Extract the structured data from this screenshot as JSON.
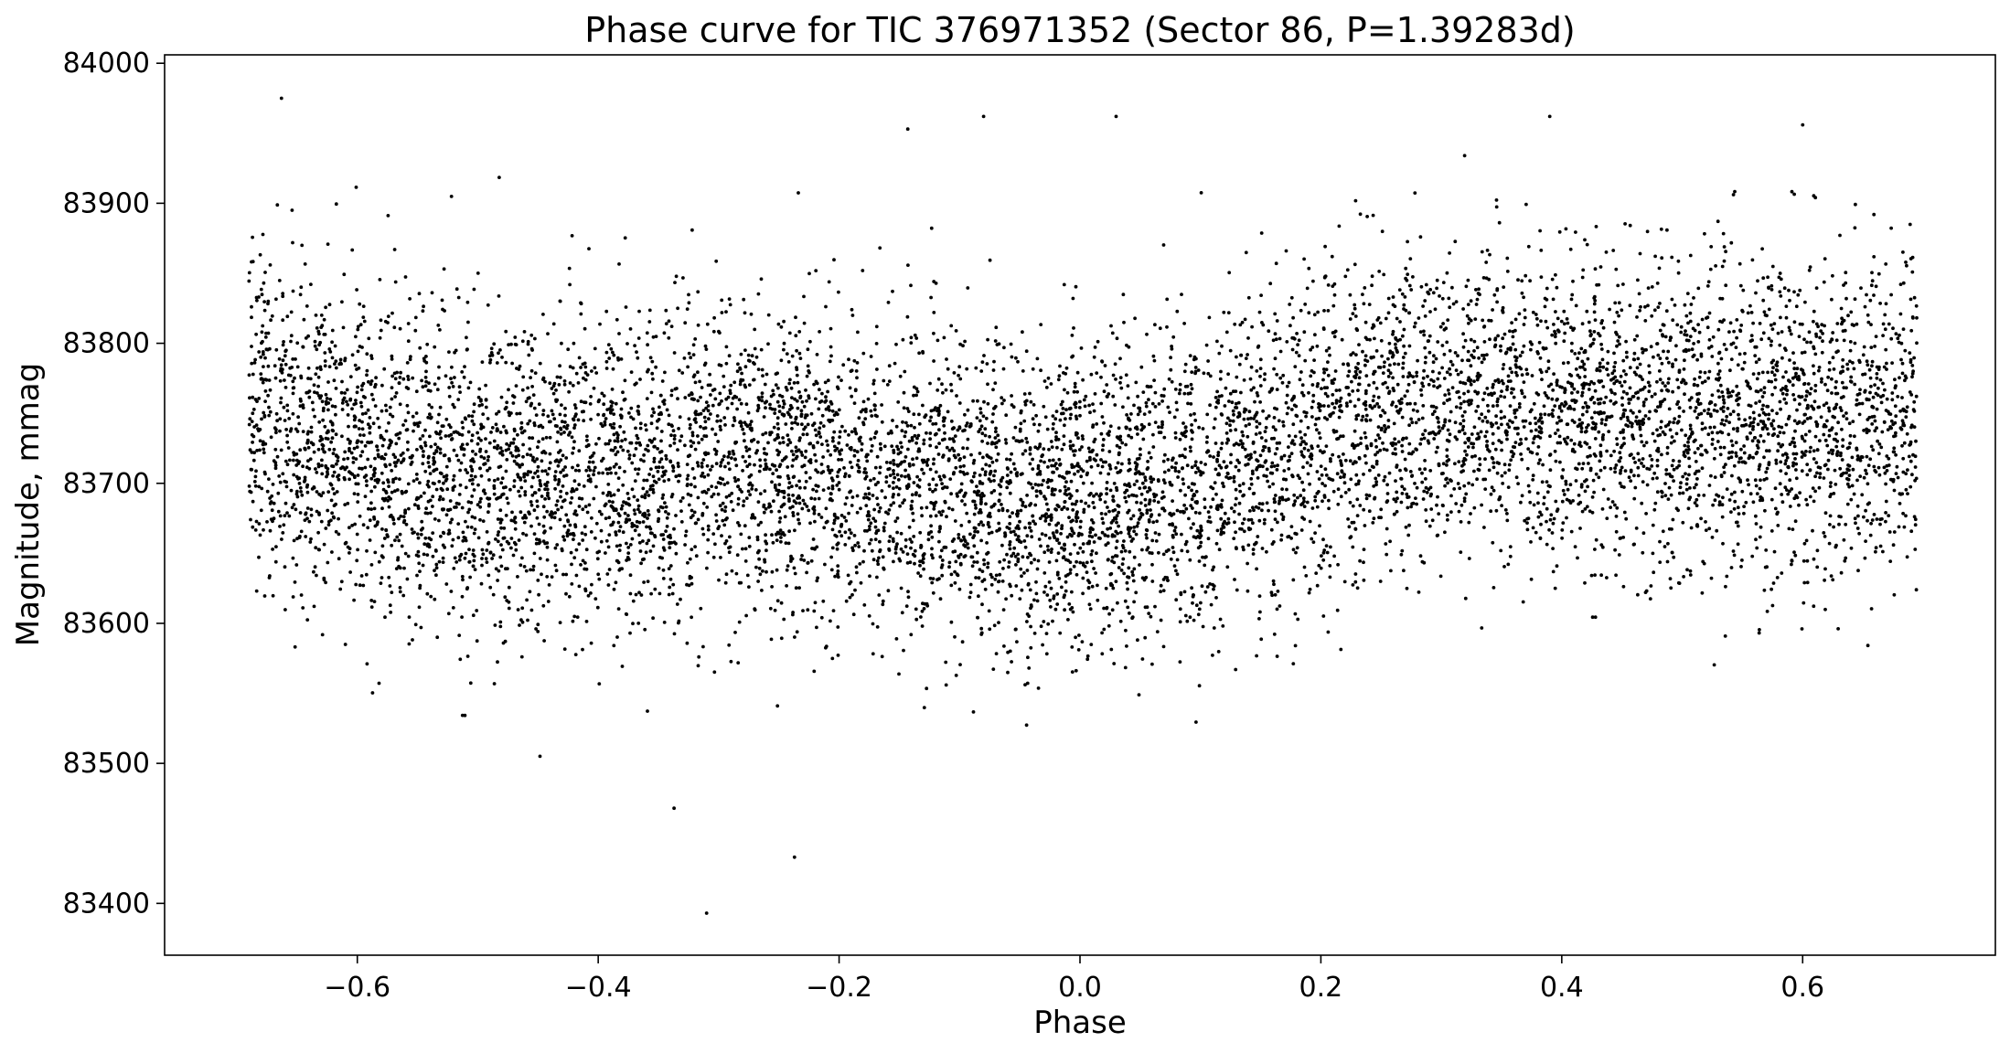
{
  "chart_data": {
    "type": "scatter",
    "title": "Phase curve for TIC 376971352 (Sector 86, P=1.39283d)",
    "xlabel": "Phase",
    "ylabel": "Magnitude, mmag",
    "xlim": [
      -0.76,
      0.76
    ],
    "ylim": [
      83363,
      84006
    ],
    "x_ticks": [
      -0.6,
      -0.4,
      -0.2,
      0.0,
      0.2,
      0.4,
      0.6
    ],
    "x_tick_labels": [
      "−0.6",
      "−0.4",
      "−0.2",
      "0.0",
      "0.2",
      "0.4",
      "0.6"
    ],
    "y_ticks": [
      83400,
      83500,
      83600,
      83700,
      83800,
      83900,
      84000
    ],
    "y_tick_labels": [
      "83400",
      "83500",
      "83600",
      "83700",
      "83800",
      "83900",
      "84000"
    ],
    "grid": false,
    "marker_color": "#000000",
    "series": [
      {
        "phase_range": [
          -0.69,
          0.695
        ],
        "point_count": 9000,
        "trend_phase": [
          -0.69,
          -0.6,
          -0.5,
          -0.4,
          -0.3,
          -0.2,
          -0.1,
          0.0,
          0.1,
          0.2,
          0.3,
          0.4,
          0.5,
          0.6,
          0.695
        ],
        "trend_magnitude": [
          83745,
          83725,
          83705,
          83705,
          83720,
          83715,
          83695,
          83690,
          83700,
          83740,
          83760,
          83750,
          83745,
          83750,
          83750
        ],
        "scatter_mmag": 55,
        "outliers": [
          {
            "x": -0.663,
            "y": 83975
          },
          {
            "x": -0.31,
            "y": 83393
          },
          {
            "x": -0.237,
            "y": 83433
          },
          {
            "x": -0.337,
            "y": 83468
          },
          {
            "x": 0.03,
            "y": 83962
          },
          {
            "x": 0.39,
            "y": 83962
          },
          {
            "x": 0.6,
            "y": 83956
          },
          {
            "x": -0.08,
            "y": 83962
          },
          {
            "x": -0.143,
            "y": 83953
          }
        ]
      }
    ]
  }
}
